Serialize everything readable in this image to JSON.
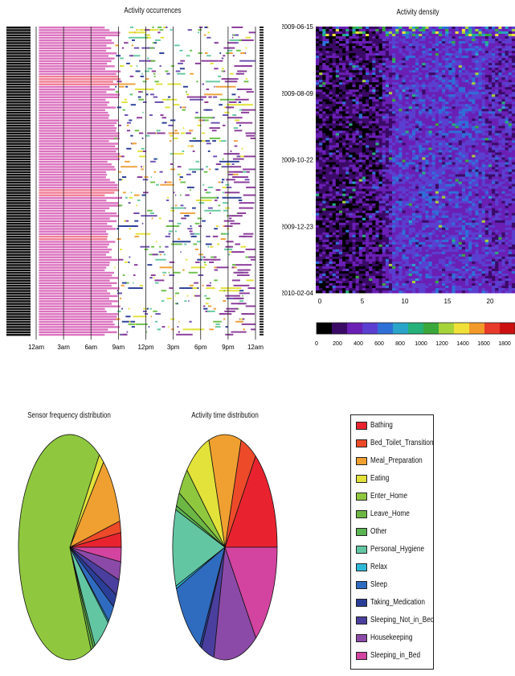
{
  "chart_data": [
    {
      "type": "timeline",
      "title": "Activity occurrences",
      "x_ticks": [
        "12am",
        "3am",
        "6am",
        "9am",
        "12pm",
        "3pm",
        "6pm",
        "9pm",
        "12am"
      ],
      "grid": true,
      "colors": {
        "sleep": "#d863b8",
        "sleep_dark": "#8a3a9a",
        "bed": "#e3353f",
        "housekeeping": "#6b4fb0",
        "meal": "#f0a13a",
        "eating": "#e2e23a",
        "enter": "#6cc04a",
        "hygiene": "#66c9a0",
        "medication": "#2a3e98"
      }
    },
    {
      "type": "heatmap",
      "title": "Activity density",
      "y_ticks": [
        "2009-06-15",
        "2009-08-09",
        "2009-10-22",
        "2009-12-23",
        "2010-02-04"
      ],
      "x_ticks": [
        "0",
        "5",
        "10",
        "15",
        "20"
      ],
      "colorbar_ticks": [
        "0",
        "200",
        "400",
        "600",
        "800",
        "1000",
        "1200",
        "1400",
        "1600",
        "1800"
      ],
      "colorbar_range": [
        0,
        1900
      ],
      "colormap": [
        "#000000",
        "#3a0a66",
        "#6a1fb5",
        "#5a3fd0",
        "#2f6fd8",
        "#2aa4c8",
        "#26b07a",
        "#3aa83a",
        "#a6d23a",
        "#f0e03a",
        "#f29a2a",
        "#e83a2a",
        "#cc1010"
      ]
    },
    {
      "type": "pie",
      "title": "Sensor frequency distribution",
      "labels": [
        "Bathing",
        "Bed_Toilet_Transition",
        "Meal_Preparation",
        "Eating",
        "Enter_Home",
        "Leave_Home",
        "Other",
        "Personal_Hygiene",
        "Relax",
        "Sleep",
        "Taking_Medication",
        "Sleeping_Not_in_Bed",
        "Housekeeping",
        "Sleeping_in_Bed"
      ],
      "values": [
        2.0,
        1.6,
        9.5,
        1.6,
        63.8,
        0.7,
        0.6,
        5.0,
        0.3,
        2.4,
        1.8,
        2.2,
        2.5,
        2.0
      ]
    },
    {
      "type": "pie",
      "title": "Activity time distribution",
      "labels": [
        "Bathing",
        "Bed_Toilet_Transition",
        "Meal_Preparation",
        "Eating",
        "Enter_Home",
        "Leave_Home",
        "Other",
        "Personal_Hygiene",
        "Relax",
        "Sleep",
        "Taking_Medication",
        "Sleeping_Not_in_Bed",
        "Housekeeping",
        "Sleeping_in_Bed"
      ],
      "values": [
        15.0,
        5.0,
        10.0,
        8.0,
        4.0,
        2.0,
        0.6,
        11.0,
        0.4,
        11.0,
        0.6,
        4.0,
        13.5,
        14.9
      ]
    }
  ],
  "legend": {
    "items": [
      {
        "label": "Bathing",
        "color": "#e8232f"
      },
      {
        "label": "Bed_Toilet_Transition",
        "color": "#ed4a2a"
      },
      {
        "label": "Meal_Preparation",
        "color": "#f0a030"
      },
      {
        "label": "Eating",
        "color": "#e2e23a"
      },
      {
        "label": "Enter_Home",
        "color": "#8fc83e"
      },
      {
        "label": "Leave_Home",
        "color": "#6cb744"
      },
      {
        "label": "Other",
        "color": "#5ab552"
      },
      {
        "label": "Personal_Hygiene",
        "color": "#63c6a3"
      },
      {
        "label": "Relax",
        "color": "#2fb9d8"
      },
      {
        "label": "Sleep",
        "color": "#2f6cc0"
      },
      {
        "label": "Taking_Medication",
        "color": "#2a3e98"
      },
      {
        "label": "Sleeping_Not_in_Bed",
        "color": "#4a3f9e"
      },
      {
        "label": "Housekeeping",
        "color": "#8c4aa8"
      },
      {
        "label": "Sleeping_in_Bed",
        "color": "#d2449f"
      }
    ]
  }
}
